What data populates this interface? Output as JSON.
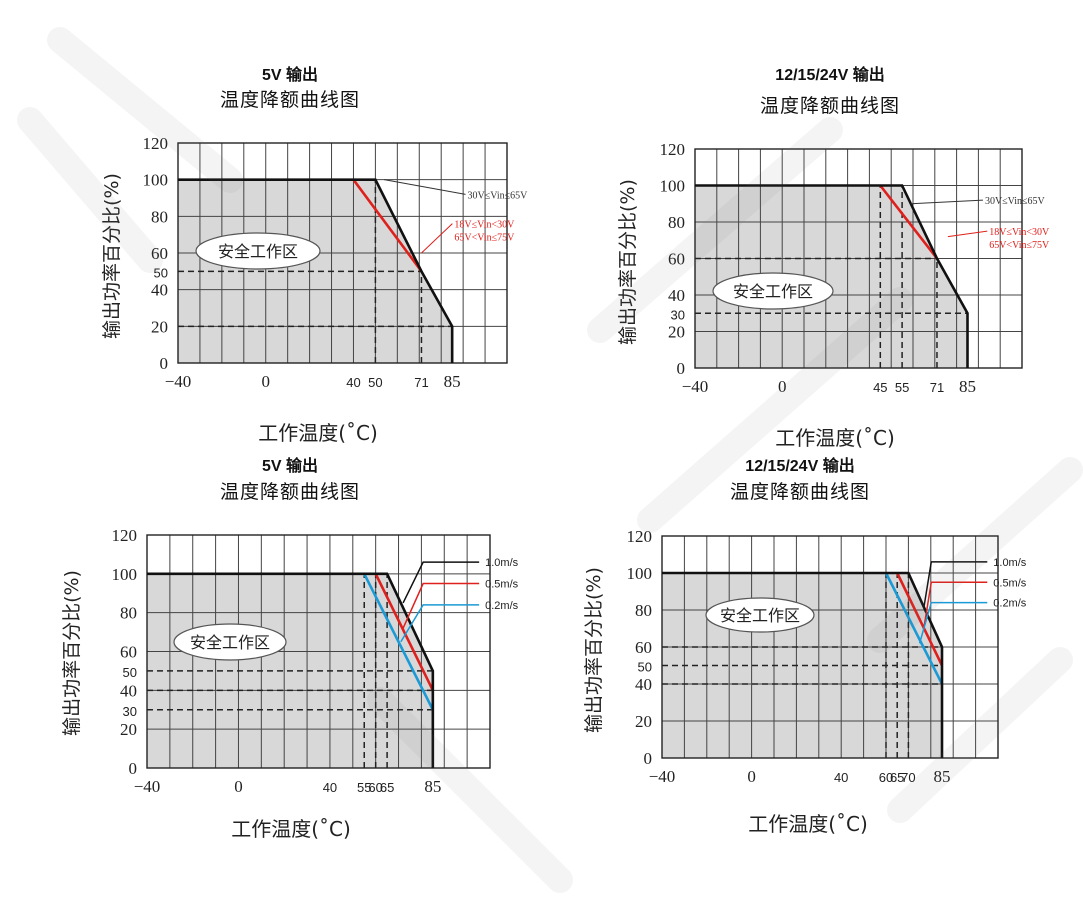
{
  "chart_data": [
    {
      "type": "line",
      "title_line1": "5V 输出",
      "title_line2": "温度降额曲线图",
      "xlabel": "工作温度(˚C)",
      "ylabel": "输出功率百分比(%)",
      "xlim": [
        -40,
        110
      ],
      "ylim": [
        0,
        120
      ],
      "grid": true,
      "safe_area_label": "安全工作区",
      "x_ticks": [
        {
          "value": -40,
          "label": "−40"
        },
        {
          "value": 0,
          "label": "0"
        },
        {
          "value": 40,
          "label": "40"
        },
        {
          "value": 50,
          "label": "50"
        },
        {
          "value": 71,
          "label": "71"
        },
        {
          "value": 85,
          "label": "85"
        }
      ],
      "y_ticks": [
        {
          "value": 0,
          "label": "0"
        },
        {
          "value": 20,
          "label": "20"
        },
        {
          "value": 40,
          "label": "40"
        },
        {
          "value": 50,
          "label": "50"
        },
        {
          "value": 60,
          "label": "60"
        },
        {
          "value": 80,
          "label": "80"
        },
        {
          "value": 100,
          "label": "100"
        },
        {
          "value": 120,
          "label": "120"
        }
      ],
      "series": [
        {
          "name": "30V≤Vin≤65V",
          "color": "#111111",
          "points": [
            [
              -40,
              100
            ],
            [
              50,
              100
            ],
            [
              71,
              50
            ],
            [
              85,
              20
            ],
            [
              85,
              0
            ]
          ]
        },
        {
          "name": "18V≤Vin<30V 65V<Vin≤75V",
          "color": "#e0201c",
          "points": [
            [
              40,
              100
            ],
            [
              71,
              50
            ]
          ]
        }
      ],
      "guides": [
        {
          "type": "h",
          "y": 50,
          "x0": -40,
          "x1": 71
        },
        {
          "type": "h",
          "y": 20,
          "x0": -40,
          "x1": 85
        },
        {
          "type": "v",
          "x": 50,
          "y0": 0,
          "y1": 100
        },
        {
          "type": "v",
          "x": 71,
          "y0": 0,
          "y1": 50
        }
      ],
      "annotations": [
        {
          "lines": [
            "30V≤Vin≤65V"
          ],
          "color": "#333333",
          "x": 54,
          "y": 100,
          "tx": 92,
          "ty": 92,
          "small": false
        },
        {
          "lines": [
            "18V≤Vin<30V",
            "65V<Vin≤75V"
          ],
          "color": "#e0201c",
          "x": 71,
          "y": 60,
          "tx": 86,
          "ty": 76,
          "small": false
        }
      ]
    },
    {
      "type": "line",
      "title_line1": "12/15/24V 输出",
      "title_line2": "温度降额曲线图",
      "xlabel": "工作温度(˚C)",
      "ylabel": "输出功率百分比(%)",
      "xlim": [
        -40,
        110
      ],
      "ylim": [
        0,
        120
      ],
      "grid": true,
      "safe_area_label": "安全工作区",
      "x_ticks": [
        {
          "value": -40,
          "label": "−40"
        },
        {
          "value": 0,
          "label": "0"
        },
        {
          "value": 45,
          "label": "45"
        },
        {
          "value": 55,
          "label": "55"
        },
        {
          "value": 71,
          "label": "71"
        },
        {
          "value": 85,
          "label": "85"
        }
      ],
      "y_ticks": [
        {
          "value": 0,
          "label": "0"
        },
        {
          "value": 20,
          "label": "20"
        },
        {
          "value": 30,
          "label": "30"
        },
        {
          "value": 40,
          "label": "40"
        },
        {
          "value": 60,
          "label": "60"
        },
        {
          "value": 80,
          "label": "80"
        },
        {
          "value": 100,
          "label": "100"
        },
        {
          "value": 120,
          "label": "120"
        }
      ],
      "series": [
        {
          "name": "30V≤Vin≤65V",
          "color": "#111111",
          "points": [
            [
              -40,
              100
            ],
            [
              55,
              100
            ],
            [
              71,
              60
            ],
            [
              85,
              30
            ],
            [
              85,
              0
            ]
          ]
        },
        {
          "name": "18V≤Vin<30V 65V<Vin≤75V",
          "color": "#e0201c",
          "points": [
            [
              45,
              100
            ],
            [
              71,
              60
            ]
          ]
        }
      ],
      "guides": [
        {
          "type": "h",
          "y": 60,
          "x0": -40,
          "x1": 71
        },
        {
          "type": "h",
          "y": 30,
          "x0": -40,
          "x1": 85
        },
        {
          "type": "v",
          "x": 45,
          "y0": 0,
          "y1": 100
        },
        {
          "type": "v",
          "x": 55,
          "y0": 0,
          "y1": 100
        },
        {
          "type": "v",
          "x": 71,
          "y0": 0,
          "y1": 60
        }
      ],
      "annotations": [
        {
          "lines": [
            "30V≤Vin≤65V"
          ],
          "color": "#333333",
          "x": 59,
          "y": 90,
          "tx": 93,
          "ty": 92,
          "small": false
        },
        {
          "lines": [
            "18V≤Vin<30V",
            "65V<Vin≤75V"
          ],
          "color": "#e0201c",
          "x": 76,
          "y": 72,
          "tx": 95,
          "ty": 75,
          "small": false
        }
      ]
    },
    {
      "type": "line",
      "title_line1": "5V 输出",
      "title_line2": "温度降额曲线图",
      "xlabel": "工作温度(˚C)",
      "ylabel": "输出功率百分比(%)",
      "xlim": [
        -40,
        110
      ],
      "ylim": [
        0,
        120
      ],
      "grid": true,
      "safe_area_label": "安全工作区",
      "x_ticks": [
        {
          "value": -40,
          "label": "−40"
        },
        {
          "value": 0,
          "label": "0"
        },
        {
          "value": 40,
          "label": "40"
        },
        {
          "value": 55,
          "label": "55"
        },
        {
          "value": 60,
          "label": "60"
        },
        {
          "value": 65,
          "label": "65"
        },
        {
          "value": 85,
          "label": "85"
        }
      ],
      "y_ticks": [
        {
          "value": 0,
          "label": "0"
        },
        {
          "value": 20,
          "label": "20"
        },
        {
          "value": 30,
          "label": "30"
        },
        {
          "value": 40,
          "label": "40"
        },
        {
          "value": 50,
          "label": "50"
        },
        {
          "value": 60,
          "label": "60"
        },
        {
          "value": 80,
          "label": "80"
        },
        {
          "value": 100,
          "label": "100"
        },
        {
          "value": 120,
          "label": "120"
        }
      ],
      "series": [
        {
          "name": "1.0m/s",
          "color": "#111111",
          "points": [
            [
              -40,
              100
            ],
            [
              65,
              100
            ],
            [
              85,
              50
            ],
            [
              85,
              0
            ]
          ]
        },
        {
          "name": "0.5m/s",
          "color": "#e0201c",
          "points": [
            [
              60,
              100
            ],
            [
              85,
              40
            ]
          ]
        },
        {
          "name": "0.2m/s",
          "color": "#1a9ad6",
          "points": [
            [
              55,
              100
            ],
            [
              85,
              30
            ]
          ]
        }
      ],
      "guides": [
        {
          "type": "h",
          "y": 50,
          "x0": -40,
          "x1": 85
        },
        {
          "type": "h",
          "y": 40,
          "x0": -40,
          "x1": 85
        },
        {
          "type": "h",
          "y": 30,
          "x0": -40,
          "x1": 85
        },
        {
          "type": "v",
          "x": 55,
          "y0": 0,
          "y1": 100
        },
        {
          "type": "v",
          "x": 60,
          "y0": 0,
          "y1": 100
        },
        {
          "type": "v",
          "x": 65,
          "y0": 0,
          "y1": 100
        }
      ],
      "annotations": [
        {
          "lines": [
            "1.0m/s"
          ],
          "color": "#111111",
          "x": 72,
          "y": 85,
          "tx": 107,
          "ty": 106,
          "small": true
        },
        {
          "lines": [
            "0.5m/s"
          ],
          "color": "#e0201c",
          "x": 72,
          "y": 72,
          "tx": 107,
          "ty": 95,
          "small": true
        },
        {
          "lines": [
            "0.2m/s"
          ],
          "color": "#1a9ad6",
          "x": 71,
          "y": 65,
          "tx": 107,
          "ty": 84,
          "small": true
        }
      ]
    },
    {
      "type": "line",
      "title_line1": "12/15/24V 输出",
      "title_line2": "温度降额曲线图",
      "xlabel": "工作温度(˚C)",
      "ylabel": "输出功率百分比(%)",
      "xlim": [
        -40,
        110
      ],
      "ylim": [
        0,
        120
      ],
      "grid": true,
      "safe_area_label": "安全工作区",
      "x_ticks": [
        {
          "value": -40,
          "label": "−40"
        },
        {
          "value": 0,
          "label": "0"
        },
        {
          "value": 40,
          "label": "40"
        },
        {
          "value": 60,
          "label": "60"
        },
        {
          "value": 65,
          "label": "65"
        },
        {
          "value": 70,
          "label": "70"
        },
        {
          "value": 85,
          "label": "85"
        }
      ],
      "y_ticks": [
        {
          "value": 0,
          "label": "0"
        },
        {
          "value": 20,
          "label": "20"
        },
        {
          "value": 40,
          "label": "40"
        },
        {
          "value": 50,
          "label": "50"
        },
        {
          "value": 60,
          "label": "60"
        },
        {
          "value": 80,
          "label": "80"
        },
        {
          "value": 100,
          "label": "100"
        },
        {
          "value": 120,
          "label": "120"
        }
      ],
      "series": [
        {
          "name": "1.0m/s",
          "color": "#111111",
          "points": [
            [
              -40,
              100
            ],
            [
              70,
              100
            ],
            [
              85,
              60
            ],
            [
              85,
              0
            ]
          ]
        },
        {
          "name": "0.5m/s",
          "color": "#e0201c",
          "points": [
            [
              65,
              100
            ],
            [
              85,
              50
            ]
          ]
        },
        {
          "name": "0.2m/s",
          "color": "#1a9ad6",
          "points": [
            [
              60,
              100
            ],
            [
              85,
              40
            ]
          ]
        }
      ],
      "guides": [
        {
          "type": "h",
          "y": 60,
          "x0": -40,
          "x1": 85
        },
        {
          "type": "h",
          "y": 50,
          "x0": -40,
          "x1": 85
        },
        {
          "type": "h",
          "y": 40,
          "x0": -40,
          "x1": 85
        },
        {
          "type": "v",
          "x": 60,
          "y0": 0,
          "y1": 100
        },
        {
          "type": "v",
          "x": 65,
          "y0": 0,
          "y1": 100
        },
        {
          "type": "v",
          "x": 70,
          "y0": 0,
          "y1": 100
        }
      ],
      "annotations": [
        {
          "lines": [
            "1.0m/s"
          ],
          "color": "#111111",
          "x": 77,
          "y": 82,
          "tx": 107,
          "ty": 106,
          "small": true
        },
        {
          "lines": [
            "0.5m/s"
          ],
          "color": "#e0201c",
          "x": 77,
          "y": 71,
          "tx": 107,
          "ty": 95,
          "small": true
        },
        {
          "lines": [
            "0.2m/s"
          ],
          "color": "#1a9ad6",
          "x": 75,
          "y": 62,
          "tx": 107,
          "ty": 84,
          "small": true
        }
      ]
    }
  ]
}
